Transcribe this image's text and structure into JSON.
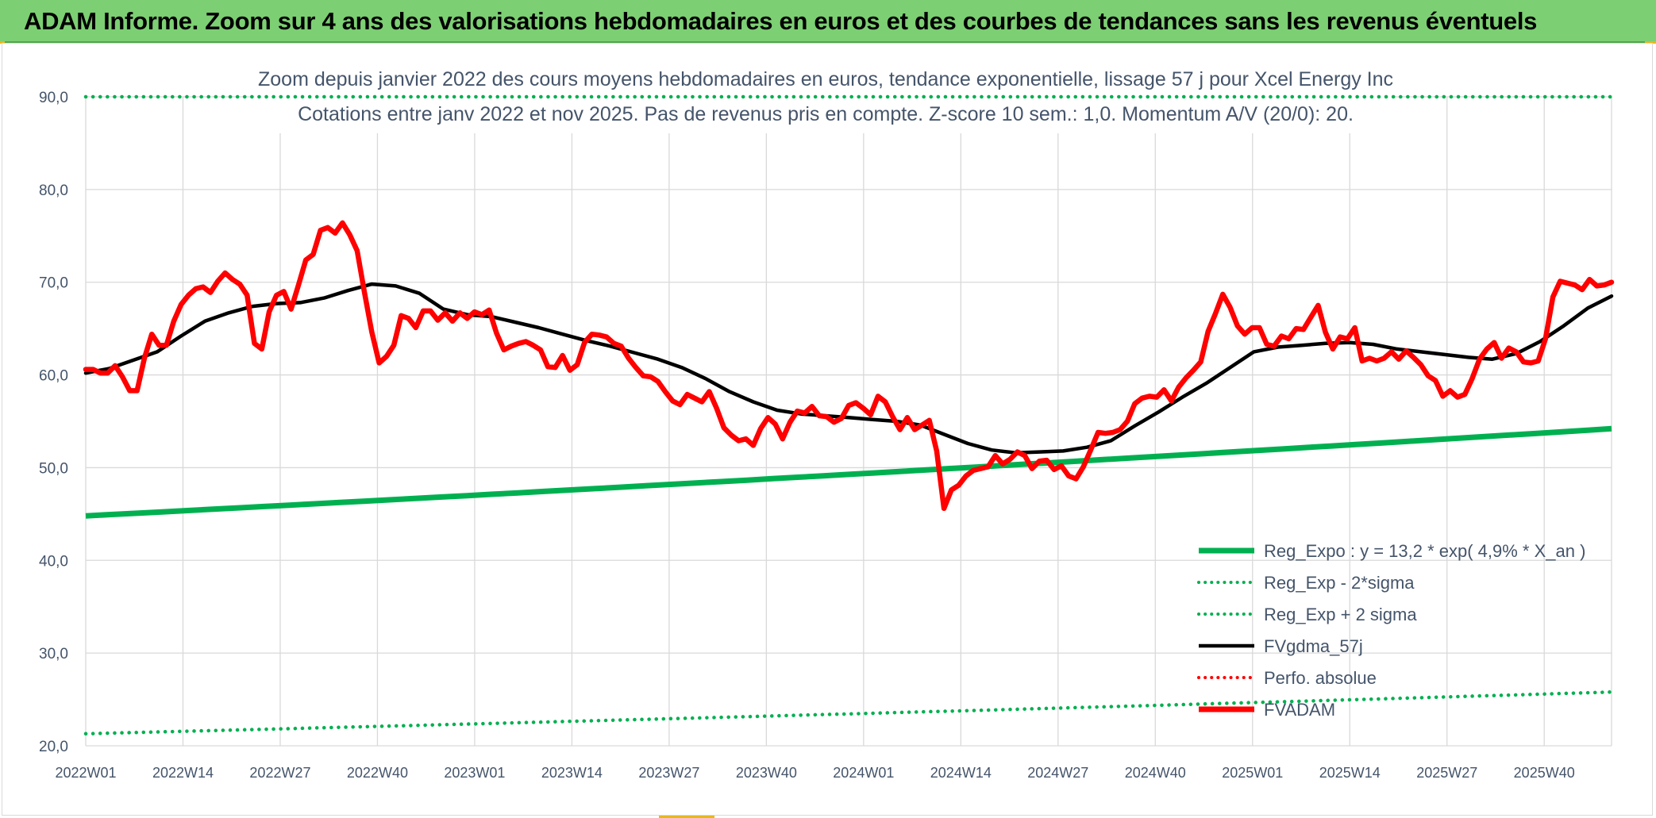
{
  "banner": {
    "title": "ADAM Informe. Zoom sur 4 ans des valorisations hebdomadaires en euros et des courbes de tendances sans les revenus éventuels"
  },
  "chart_data": {
    "type": "line",
    "title": "Zoom depuis janvier 2022 des cours moyens hebdomadaires en euros, tendance exponentielle, lissage 57 j pour Xcel Energy Inc",
    "subtitle": "Cotations entre janv 2022 et nov 2025. Pas de revenus pris en compte. Z-score 10 sem.: 1,0. Momentum A/V (20/0): 20.",
    "xlabel": "",
    "ylabel": "",
    "ylim": [
      20,
      90
    ],
    "y_ticks": [
      "20,0",
      "30,0",
      "40,0",
      "50,0",
      "60,0",
      "70,0",
      "80,0",
      "90,0"
    ],
    "x_tick_labels": [
      "2022W01",
      "2022W14",
      "2022W27",
      "2022W40",
      "2023W01",
      "2023W14",
      "2023W27",
      "2023W40",
      "2024W01",
      "2024W14",
      "2024W27",
      "2024W40",
      "2025W01",
      "2025W14",
      "2025W27",
      "2025W40"
    ],
    "week_range": {
      "first": "2022W01",
      "weeks_shown": 205
    },
    "grid": true,
    "legend_position": "bottom-right",
    "series": [
      {
        "name": "Reg_Expo : y = 13,2 * exp( 4,9% *  X_an )",
        "color": "#00b050",
        "style": "solid",
        "values": [
          44.8,
          54.2
        ]
      },
      {
        "name": "Reg_Exp - 2*sigma",
        "color": "#00b050",
        "style": "dotted",
        "values": [
          21.3,
          25.8
        ]
      },
      {
        "name": "Reg_Exp + 2 sigma",
        "color": "#00b050",
        "style": "dotted",
        "values": [
          90.0,
          90.0
        ]
      },
      {
        "name": "FVgdma_57j",
        "color": "#000000",
        "style": "solid",
        "values": [
          60.2,
          60.7,
          61.6,
          62.5,
          64.2,
          65.8,
          66.7,
          67.4,
          67.7,
          67.8,
          68.3,
          69.1,
          69.8,
          69.6,
          68.8,
          67.1,
          66.5,
          66.3,
          65.7,
          65.1,
          64.4,
          63.7,
          63.1,
          62.4,
          61.7,
          60.8,
          59.6,
          58.2,
          57.1,
          56.2,
          55.8,
          55.6,
          55.4,
          55.2,
          55.0,
          54.6,
          53.6,
          52.6,
          51.9,
          51.6,
          51.7,
          51.8,
          52.2,
          52.9,
          54.5,
          56.0,
          57.6,
          59.1,
          60.8,
          62.5,
          63.0,
          63.2,
          63.4,
          63.5,
          63.3,
          62.8,
          62.5,
          62.2,
          61.9,
          61.7,
          62.3,
          63.6,
          65.3,
          67.2,
          68.5
        ]
      },
      {
        "name": "Perfo. absolue",
        "color": "#ff0000",
        "style": "dotted",
        "values": []
      },
      {
        "name": "FVADAM",
        "color": "#ff0000",
        "style": "solid",
        "values": [
          60.6,
          60.6,
          60.2,
          60.2,
          61.0,
          59.8,
          58.3,
          58.3,
          61.8,
          64.4,
          63.2,
          63.2,
          65.8,
          67.6,
          68.6,
          69.3,
          69.5,
          68.9,
          70.1,
          71.0,
          70.3,
          69.8,
          68.6,
          63.4,
          62.8,
          66.8,
          68.6,
          69.0,
          67.1,
          69.7,
          72.4,
          73.0,
          75.6,
          75.9,
          75.3,
          76.4,
          75.1,
          73.4,
          68.9,
          64.6,
          61.3,
          62.0,
          63.2,
          66.4,
          66.1,
          65.1,
          66.9,
          66.9,
          65.9,
          66.7,
          65.8,
          66.7,
          66.1,
          66.8,
          66.5,
          67.0,
          64.5,
          62.7,
          63.1,
          63.4,
          63.6,
          63.2,
          62.7,
          60.9,
          60.8,
          62.1,
          60.5,
          61.1,
          63.5,
          64.4,
          64.3,
          64.1,
          63.4,
          63.1,
          61.8,
          60.8,
          59.9,
          59.8,
          59.3,
          58.2,
          57.2,
          56.8,
          57.9,
          57.5,
          57.1,
          58.2,
          56.4,
          54.3,
          53.5,
          52.9,
          53.1,
          52.4,
          54.2,
          55.4,
          54.7,
          53.1,
          54.9,
          56.1,
          55.9,
          56.6,
          55.6,
          55.5,
          54.9,
          55.3,
          56.7,
          57.0,
          56.4,
          55.7,
          57.7,
          57.1,
          55.5,
          54.1,
          55.4,
          54.1,
          54.6,
          55.1,
          51.8,
          45.6,
          47.6,
          48.1,
          49.1,
          49.7,
          49.9,
          50.1,
          51.3,
          50.4,
          50.9,
          51.7,
          51.3,
          49.9,
          50.7,
          50.8,
          49.8,
          50.2,
          49.1,
          48.8,
          50.1,
          51.9,
          53.8,
          53.7,
          53.8,
          54.1,
          55.0,
          56.9,
          57.5,
          57.7,
          57.6,
          58.4,
          57.2,
          58.7,
          59.7,
          60.5,
          61.4,
          64.7,
          66.6,
          68.7,
          67.3,
          65.3,
          64.4,
          65.1,
          65.1,
          63.3,
          63.1,
          64.2,
          63.9,
          65.0,
          64.9,
          66.2,
          67.5,
          64.6,
          62.8,
          64.1,
          63.9,
          65.1,
          61.5,
          61.8,
          61.5,
          61.8,
          62.5,
          61.7,
          62.6,
          61.9,
          61.1,
          59.9,
          59.4,
          57.7,
          58.3,
          57.6,
          57.9,
          59.6,
          61.7,
          62.8,
          63.5,
          61.8,
          62.9,
          62.5,
          61.4,
          61.3,
          61.5,
          63.9,
          68.4,
          70.1,
          69.9,
          69.7,
          69.2,
          70.3,
          69.6,
          69.7,
          70.0
        ]
      }
    ]
  }
}
